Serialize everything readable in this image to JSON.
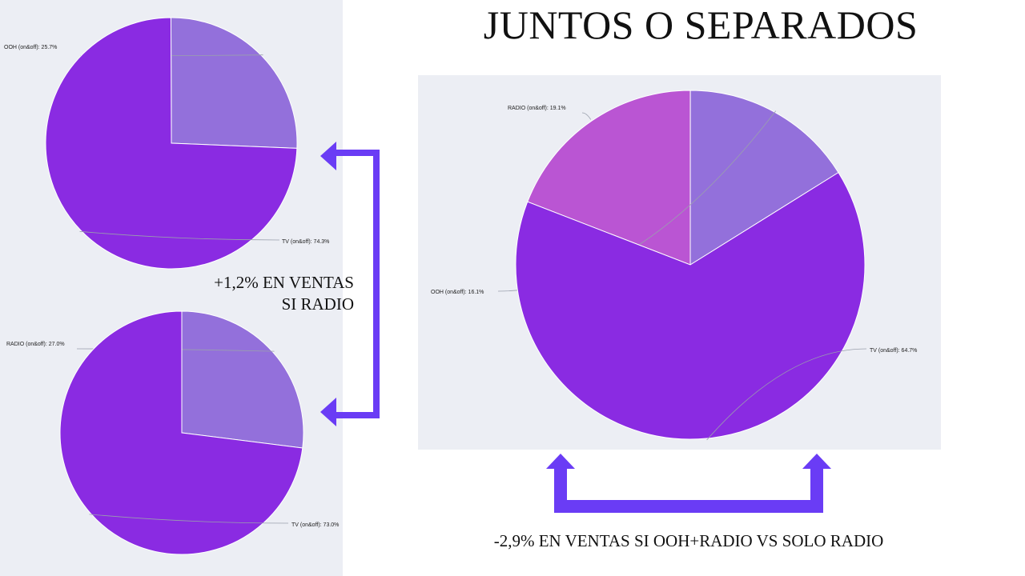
{
  "title": "JUNTOS O SEPARADOS",
  "captions": {
    "left": [
      "+1,2% EN VENTAS",
      "SI RADIO"
    ],
    "bottom": "-2,9% EN VENTAS SI OOH+RADIO VS SOLO RADIO"
  },
  "colors": {
    "panel_bg": "#eceef4",
    "arrow": "#6a3cf5"
  },
  "chart_data": [
    {
      "type": "pie",
      "slices": [
        {
          "label": "OOH (on&off): 25.7%",
          "value": 25.7,
          "color": "#9370db"
        },
        {
          "label": "TV (on&off): 74.3%",
          "value": 74.3,
          "color": "#8a2be2"
        }
      ]
    },
    {
      "type": "pie",
      "slices": [
        {
          "label": "RADIO (on&off): 27.0%",
          "value": 27.0,
          "color": "#9370db"
        },
        {
          "label": "TV (on&off): 73.0%",
          "value": 73.0,
          "color": "#8a2be2"
        }
      ]
    },
    {
      "type": "pie",
      "slices": [
        {
          "label": "RADIO (on&off): 19.1%",
          "value": 19.1,
          "color": "#ba55d3"
        },
        {
          "label": "OOH (on&off): 16.1%",
          "value": 16.1,
          "color": "#9370db"
        },
        {
          "label": "TV (on&off): 64.7%",
          "value": 64.7,
          "color": "#8a2be2"
        }
      ]
    }
  ]
}
